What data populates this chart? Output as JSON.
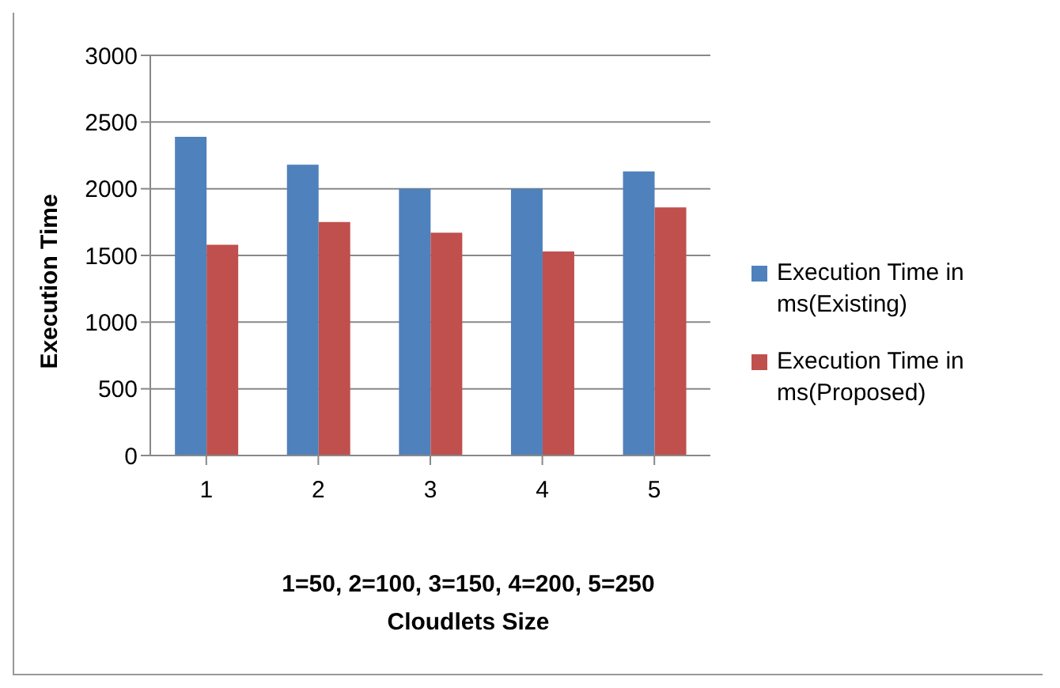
{
  "chart_data": {
    "type": "bar",
    "xlabel": "1=50, 2=100, 3=150, 4=200, 5=250\nCloudlets Size",
    "ylabel": "Execution Time",
    "categories": [
      "1",
      "2",
      "3",
      "4",
      "5"
    ],
    "series": [
      {
        "name": "Execution Time in ms(Existing)",
        "color": "#4f81bd",
        "values": [
          2390,
          2180,
          2000,
          2000,
          2130
        ]
      },
      {
        "name": "Execution Time in ms(Proposed)",
        "color": "#c0504d",
        "values": [
          1580,
          1750,
          1670,
          1530,
          1860
        ]
      }
    ],
    "ylim": [
      0,
      3000
    ],
    "yticks": [
      0,
      500,
      1000,
      1500,
      2000,
      2500,
      3000
    ],
    "grid": "y",
    "legend": "right"
  }
}
